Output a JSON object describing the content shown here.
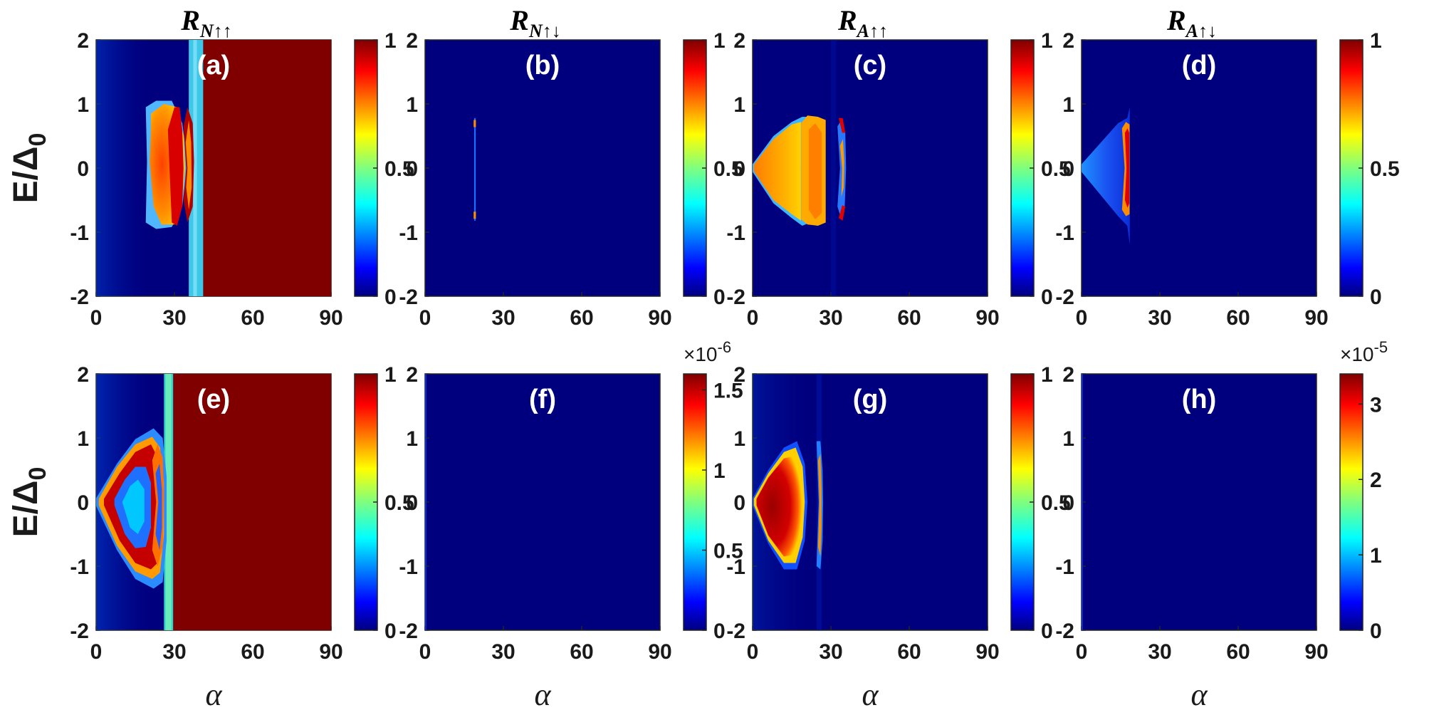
{
  "chart_data": {
    "type": "heatmap",
    "colormap": "jet",
    "colors": {
      "background_low": "#00007f",
      "high": "#800000",
      "label_text": "#ffffff",
      "axis_text": "#1a1a1a"
    },
    "ylabel": "E/Δ",
    "ylabel_subscript": "0",
    "xlabel": "α",
    "x_range": [
      0,
      90
    ],
    "y_range": [
      -2,
      2
    ],
    "x_ticks": [
      "0",
      "30",
      "60",
      "90"
    ],
    "y_ticks": [
      "2",
      "1",
      "0",
      "-1",
      "-2"
    ],
    "column_titles": [
      {
        "main": "R",
        "sub": "N",
        "arrows": "↑↑"
      },
      {
        "main": "R",
        "sub": "N",
        "arrows": "↑↓"
      },
      {
        "main": "R",
        "sub": "A",
        "arrows": "↑↑"
      },
      {
        "main": "R",
        "sub": "A",
        "arrows": "↑↓"
      }
    ],
    "panels": [
      {
        "label": "(a)",
        "colorbar": {
          "range": [
            0,
            1
          ],
          "ticks": [
            "1",
            "0.5",
            "0"
          ],
          "multiplier": null
        }
      },
      {
        "label": "(b)",
        "colorbar": {
          "range": [
            0,
            1
          ],
          "ticks": [
            "1",
            "0.5",
            "0"
          ],
          "multiplier": null
        }
      },
      {
        "label": "(c)",
        "colorbar": {
          "range": [
            0,
            1
          ],
          "ticks": [
            "1",
            "0.5",
            "0"
          ],
          "multiplier": null
        }
      },
      {
        "label": "(d)",
        "colorbar": {
          "range": [
            0,
            1
          ],
          "ticks": [
            "1",
            "0.5",
            "0"
          ],
          "multiplier": null
        }
      },
      {
        "label": "(e)",
        "colorbar": {
          "range": [
            0,
            1
          ],
          "ticks": [
            "1",
            "0.5",
            "0"
          ],
          "multiplier": null
        }
      },
      {
        "label": "(f)",
        "colorbar": {
          "range": [
            0,
            1.6
          ],
          "ticks": [
            "1.5",
            "1",
            "0.5",
            "0"
          ],
          "multiplier": "×10",
          "multiplier_exp": "-6"
        }
      },
      {
        "label": "(g)",
        "colorbar": {
          "range": [
            0,
            1
          ],
          "ticks": [
            "1",
            "0.5",
            "0"
          ],
          "multiplier": null
        }
      },
      {
        "label": "(h)",
        "colorbar": {
          "range": [
            0,
            3.4
          ],
          "ticks": [
            "3",
            "2",
            "1",
            "0"
          ],
          "multiplier": "×10",
          "multiplier_exp": "-5"
        }
      }
    ]
  }
}
